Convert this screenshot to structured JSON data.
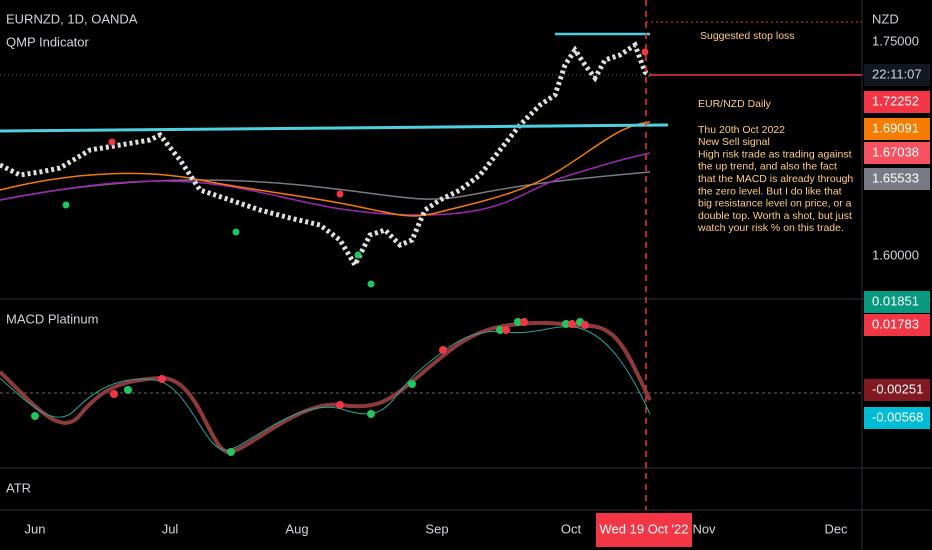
{
  "header": {
    "symbol": "EURNZD, 1D, OANDA",
    "indicator": "QMP Indicator"
  },
  "price_axis": {
    "currency": "NZD",
    "top_label": "1.75000",
    "countdown": "22:11:07",
    "level": "1.60000",
    "labels": [
      {
        "text": "1.72252",
        "color": "#f23645"
      },
      {
        "text": "1.69091",
        "color": "#f57c00"
      },
      {
        "text": "1.67038",
        "color": "#f7525f"
      },
      {
        "text": "1.65533",
        "color": "#787b86"
      }
    ]
  },
  "annotations": {
    "stop_loss": "Suggested stop loss",
    "note_title": "EUR/NZD Daily",
    "note_lines": [
      "Thu 20th Oct 2022",
      "New Sell signal",
      "High risk trade as trading against",
      "the up trend, and also the fact",
      "that the MACD is already through",
      "the zero level. But I do like that",
      "big resistance level on price, or a",
      "double top. Worth a shot, but just",
      "watch your risk % on this trade."
    ]
  },
  "macd": {
    "title": "MACD Platinum",
    "labels": [
      {
        "text": "0.01851",
        "color": "#089981"
      },
      {
        "text": "0.01783",
        "color": "#f23645"
      },
      {
        "text": "-0.00251",
        "color": "#801922"
      },
      {
        "text": "-0.00568",
        "color": "#00bcd4"
      }
    ]
  },
  "atr": {
    "title": "ATR"
  },
  "time_axis": {
    "labels": [
      "Jun",
      "Jul",
      "Aug",
      "Sep",
      "Oct",
      "Nov",
      "Dec"
    ],
    "cursor": "Wed 19 Oct '22"
  }
}
